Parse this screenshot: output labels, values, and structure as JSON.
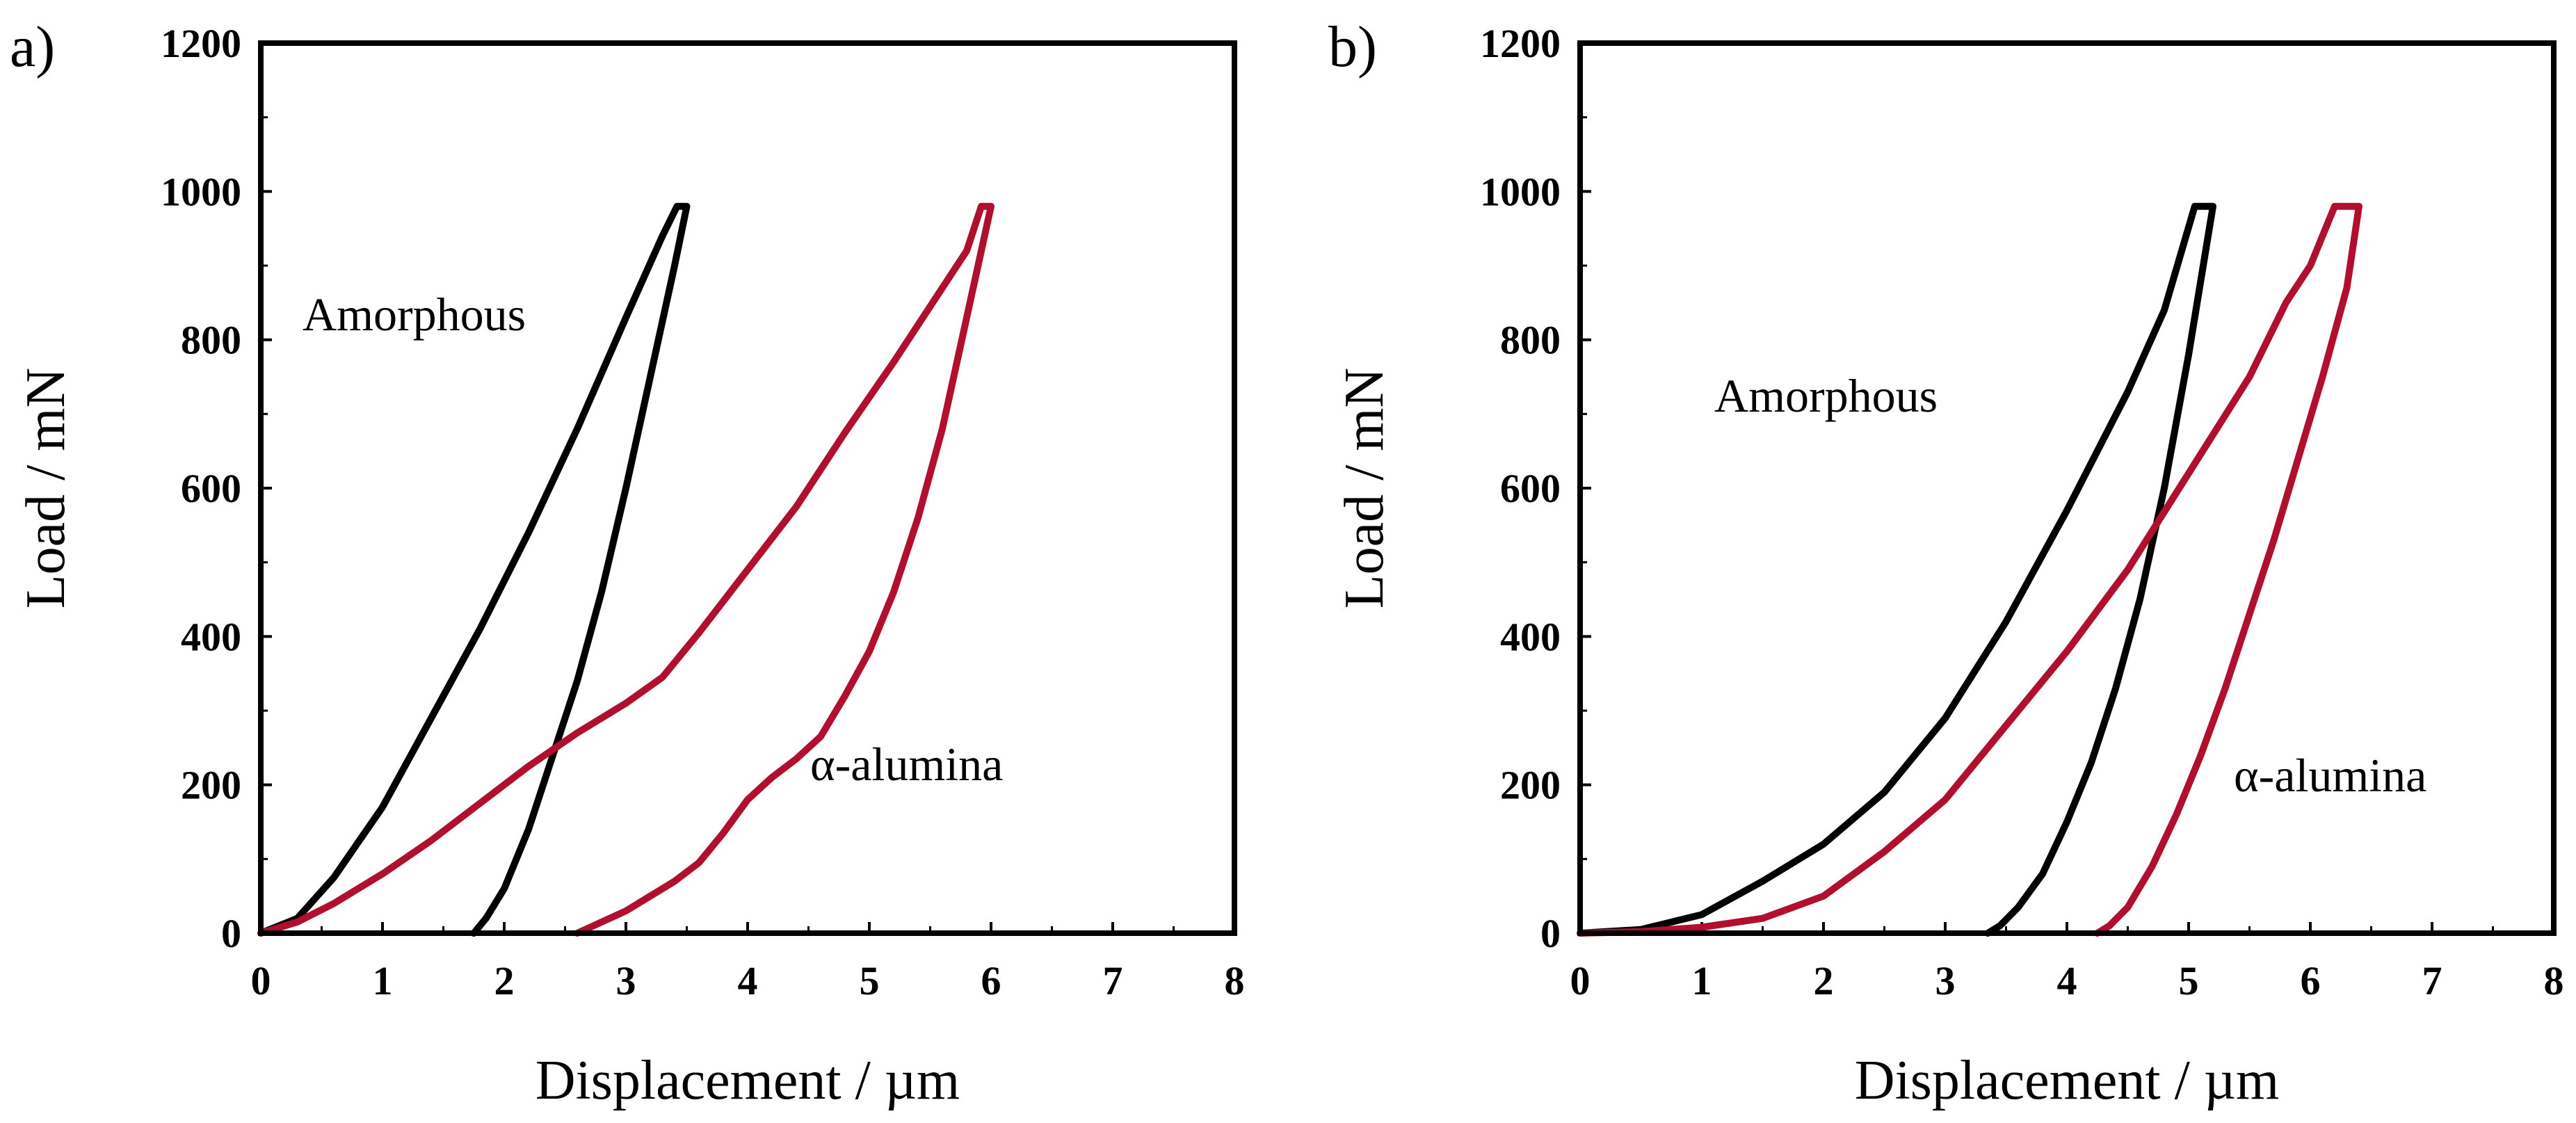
{
  "chart_data": [
    {
      "type": "line",
      "panel_label": "a)",
      "xlabel": "Displacement / µm",
      "ylabel": "Load / mN",
      "xlim": [
        0,
        8
      ],
      "ylim": [
        0,
        1200
      ],
      "xticks": [
        "0",
        "1",
        "2",
        "3",
        "4",
        "5",
        "6",
        "7",
        "8"
      ],
      "yticks": [
        "0",
        "200",
        "400",
        "600",
        "800",
        "1000",
        "1200"
      ],
      "colors": {
        "Amorphous": "#000000",
        "α-alumina": "#b0102e"
      },
      "series": [
        {
          "name": "Amorphous",
          "x": [
            0,
            0.3,
            0.6,
            1.0,
            1.4,
            1.8,
            2.2,
            2.6,
            3.0,
            3.3,
            3.42,
            3.5,
            3.4,
            3.2,
            3.0,
            2.8,
            2.6,
            2.4,
            2.2,
            2.0,
            1.85,
            1.75
          ],
          "y": [
            0,
            20,
            75,
            170,
            290,
            410,
            540,
            680,
            830,
            940,
            980,
            980,
            900,
            750,
            600,
            460,
            340,
            240,
            140,
            60,
            20,
            0
          ]
        },
        {
          "name": "α-alumina",
          "x": [
            0,
            0.3,
            0.6,
            1.0,
            1.4,
            1.8,
            2.2,
            2.6,
            3.0,
            3.3,
            3.6,
            4.0,
            4.4,
            4.8,
            5.2,
            5.6,
            5.8,
            5.92,
            6.0,
            5.8,
            5.6,
            5.4,
            5.2,
            5.0,
            4.8,
            4.6,
            4.4,
            4.2,
            4.0,
            3.8,
            3.6,
            3.4,
            3.2,
            3.0,
            2.8,
            2.6
          ],
          "y": [
            0,
            15,
            40,
            80,
            125,
            175,
            225,
            270,
            310,
            345,
            405,
            490,
            575,
            675,
            770,
            870,
            920,
            980,
            980,
            830,
            680,
            560,
            460,
            380,
            320,
            265,
            235,
            210,
            180,
            135,
            95,
            70,
            50,
            30,
            15,
            0
          ]
        }
      ],
      "annotations": [
        "Amorphous",
        "α-alumina"
      ]
    },
    {
      "type": "line",
      "panel_label": "b)",
      "xlabel": "Displacement / µm",
      "ylabel": "Load / mN",
      "xlim": [
        0,
        8
      ],
      "ylim": [
        0,
        1200
      ],
      "xticks": [
        "0",
        "1",
        "2",
        "3",
        "4",
        "5",
        "6",
        "7",
        "8"
      ],
      "yticks": [
        "0",
        "200",
        "400",
        "600",
        "800",
        "1000",
        "1200"
      ],
      "colors": {
        "Amorphous": "#000000",
        "α-alumina": "#b0102e"
      },
      "series": [
        {
          "name": "Amorphous",
          "x": [
            0,
            0.5,
            1.0,
            1.5,
            2.0,
            2.5,
            3.0,
            3.5,
            4.0,
            4.5,
            4.8,
            5.05,
            5.2,
            5.0,
            4.8,
            4.6,
            4.4,
            4.2,
            4.0,
            3.8,
            3.6,
            3.45,
            3.35
          ],
          "y": [
            0,
            5,
            25,
            70,
            120,
            190,
            290,
            420,
            570,
            730,
            840,
            980,
            980,
            780,
            600,
            450,
            330,
            230,
            150,
            80,
            35,
            10,
            0
          ]
        },
        {
          "name": "α-alumina",
          "x": [
            0,
            0.5,
            1.0,
            1.5,
            2.0,
            2.5,
            3.0,
            3.5,
            4.0,
            4.5,
            5.0,
            5.5,
            5.8,
            6.0,
            6.2,
            6.4,
            6.3,
            6.1,
            5.9,
            5.7,
            5.5,
            5.3,
            5.1,
            4.9,
            4.7,
            4.5,
            4.35,
            4.25
          ],
          "y": [
            0,
            2,
            8,
            20,
            50,
            110,
            180,
            280,
            380,
            490,
            620,
            750,
            850,
            900,
            980,
            980,
            870,
            750,
            640,
            530,
            430,
            330,
            240,
            160,
            90,
            35,
            10,
            0
          ]
        }
      ],
      "annotations": [
        "Amorphous",
        "α-alumina"
      ]
    }
  ]
}
